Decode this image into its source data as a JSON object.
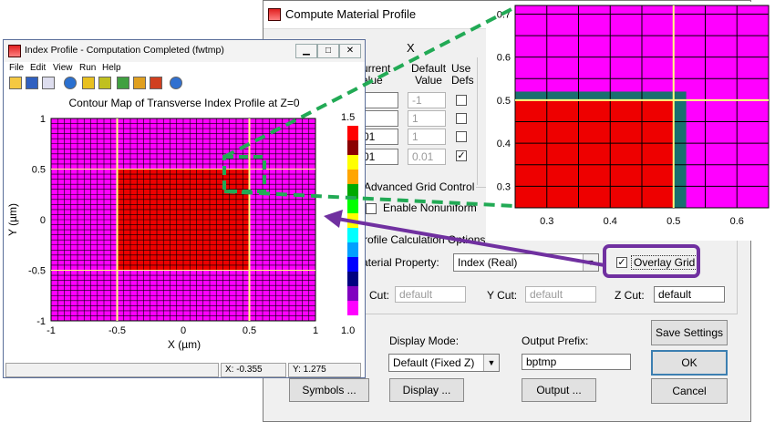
{
  "dialog": {
    "title": "Compute Material Profile",
    "close_glyph": "X",
    "columns": {
      "current": "urrent\nalue",
      "default": "Default\nValue",
      "use": "Use\nDefs"
    },
    "rows": [
      {
        "current": "",
        "default": "-1",
        "use_defs": false
      },
      {
        "current": "",
        "default": "1",
        "use_defs": false
      },
      {
        "current": "01",
        "default": "1",
        "use_defs": false
      },
      {
        "current": "01",
        "default": "0.01",
        "use_defs": true
      }
    ],
    "advanced_grid_label": "Advanced Grid Control",
    "enable_nonuniform_label": "Enable Nonuniform",
    "profile_options_label": "rofile Calculation Options",
    "material_property_label": "aterial Property:",
    "material_property_value": "Index (Real)",
    "overlay_grid_label": "Overlay Grid",
    "overlay_grid_checked": true,
    "x_cut_label": "Cut:",
    "x_cut_value": "default",
    "y_cut_label": "Y Cut:",
    "y_cut_value": "default",
    "z_cut_label": "Z Cut:",
    "z_cut_value": "default",
    "display_mode_label": "Display Mode:",
    "display_mode_value": "Default (Fixed Z)",
    "output_prefix_label": "Output Prefix:",
    "output_prefix_value": "bptmp",
    "buttons": {
      "save_settings": "Save Settings",
      "ok": "OK",
      "cancel": "Cancel",
      "symbols": "Symbols ...",
      "display": "Display ...",
      "output": "Output ..."
    }
  },
  "window": {
    "title": "Index Profile - Computation Completed (fwtmp)",
    "menu": [
      "File",
      "Edit",
      "View",
      "Run",
      "Help"
    ],
    "plot_title": "Contour Map of Transverse Index Profile at Z=0",
    "xlabel": "X (µm)",
    "ylabel": "Y (µm)",
    "xticks": [
      "-1",
      "-0.5",
      "0",
      "0.5",
      "1"
    ],
    "yticks": [
      "1",
      "0.5",
      "0",
      "-0.5",
      "-1"
    ],
    "colorbar_max": "1.5",
    "colorbar_min": "1.0",
    "status": {
      "x": "X: -0.355",
      "y": "Y: 1.275"
    }
  },
  "zoom": {
    "xticks": [
      "0.3",
      "0.4",
      "0.5",
      "0.6"
    ],
    "yticks": [
      "0.7",
      "0.6",
      "0.5",
      "0.4",
      "0.3"
    ]
  },
  "colors": {
    "core": "#ee0000",
    "cladding": "#ff00ff",
    "accent_dashed": "#22aa55",
    "callout": "#7030a0"
  }
}
